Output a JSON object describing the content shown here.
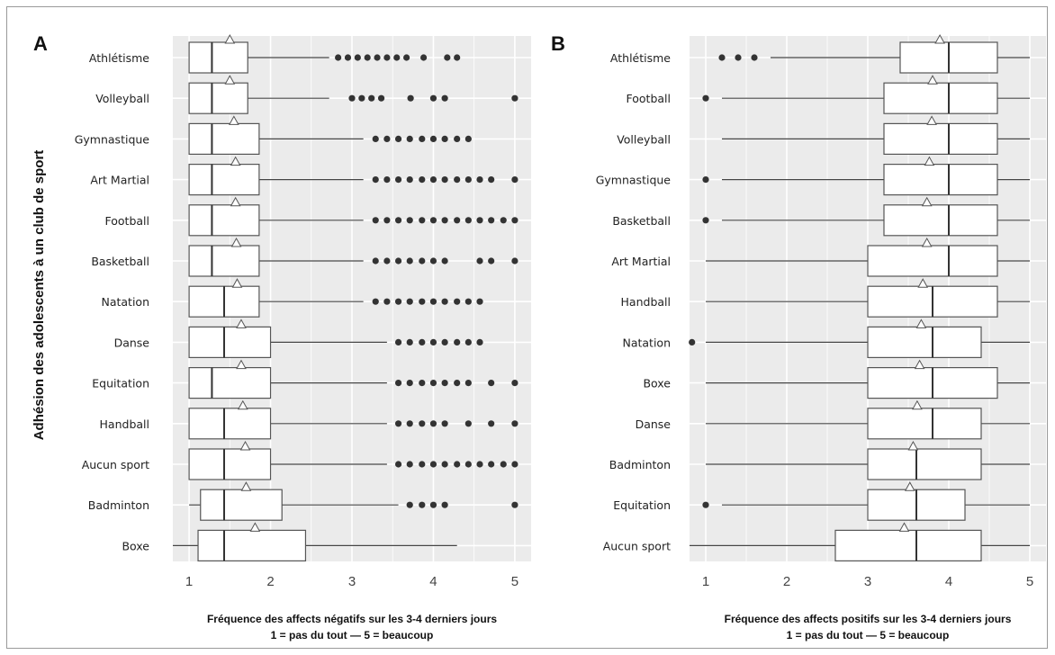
{
  "shared_ylabel": "Adhésion des adolescents à un club de sport",
  "chart_data": [
    {
      "type": "boxplot",
      "panel_label": "A",
      "xlabel": "Fréquence des affects négatifs sur les 3-4 derniers jours",
      "xlabel2": "1 = pas du tout — 5 = beaucoup",
      "xlim": [
        0.8,
        5.2
      ],
      "xticks": [
        1,
        2,
        3,
        4,
        5
      ],
      "grid": true,
      "categories": [
        "Athlétisme",
        "Volleyball",
        "Gymnastique",
        "Art Martial",
        "Football",
        "Basketball",
        "Natation",
        "Danse",
        "Equitation",
        "Handball",
        "Aucun sport",
        "Badminton",
        "Boxe"
      ],
      "boxes": [
        {
          "q1": 1.0,
          "median": 1.28,
          "q3": 1.72,
          "whisker_low": 1.0,
          "whisker_high": 2.72,
          "mean": 1.5,
          "outliers": [
            2.83,
            2.95,
            3.07,
            3.19,
            3.31,
            3.43,
            3.55,
            3.67,
            3.88,
            4.17,
            4.29
          ]
        },
        {
          "q1": 1.0,
          "median": 1.28,
          "q3": 1.72,
          "whisker_low": 1.0,
          "whisker_high": 2.72,
          "mean": 1.5,
          "outliers": [
            3.0,
            3.12,
            3.24,
            3.36,
            3.72,
            4.0,
            4.14,
            5.0
          ]
        },
        {
          "q1": 1.0,
          "median": 1.28,
          "q3": 1.86,
          "whisker_low": 1.0,
          "whisker_high": 3.14,
          "mean": 1.55,
          "outliers": [
            3.29,
            3.43,
            3.57,
            3.71,
            3.86,
            4.0,
            4.14,
            4.29,
            4.43
          ]
        },
        {
          "q1": 1.0,
          "median": 1.28,
          "q3": 1.86,
          "whisker_low": 1.0,
          "whisker_high": 3.14,
          "mean": 1.57,
          "outliers": [
            3.29,
            3.43,
            3.57,
            3.71,
            3.86,
            4.0,
            4.14,
            4.29,
            4.43,
            4.57,
            4.71,
            5.0
          ]
        },
        {
          "q1": 1.0,
          "median": 1.28,
          "q3": 1.86,
          "whisker_low": 1.0,
          "whisker_high": 3.14,
          "mean": 1.57,
          "outliers": [
            3.29,
            3.43,
            3.57,
            3.71,
            3.86,
            4.0,
            4.14,
            4.29,
            4.43,
            4.57,
            4.71,
            4.86,
            5.0
          ]
        },
        {
          "q1": 1.0,
          "median": 1.28,
          "q3": 1.86,
          "whisker_low": 1.0,
          "whisker_high": 3.14,
          "mean": 1.58,
          "outliers": [
            3.29,
            3.43,
            3.57,
            3.71,
            3.86,
            4.0,
            4.14,
            4.57,
            4.71,
            5.0
          ]
        },
        {
          "q1": 1.0,
          "median": 1.43,
          "q3": 1.86,
          "whisker_low": 1.0,
          "whisker_high": 3.14,
          "mean": 1.59,
          "outliers": [
            3.29,
            3.43,
            3.57,
            3.71,
            3.86,
            4.0,
            4.14,
            4.29,
            4.43,
            4.57
          ]
        },
        {
          "q1": 1.0,
          "median": 1.43,
          "q3": 2.0,
          "whisker_low": 1.0,
          "whisker_high": 3.43,
          "mean": 1.64,
          "outliers": [
            3.57,
            3.71,
            3.86,
            4.0,
            4.14,
            4.29,
            4.43,
            4.57
          ]
        },
        {
          "q1": 1.0,
          "median": 1.28,
          "q3": 2.0,
          "whisker_low": 1.0,
          "whisker_high": 3.43,
          "mean": 1.64,
          "outliers": [
            3.57,
            3.71,
            3.86,
            4.0,
            4.14,
            4.29,
            4.43,
            4.71,
            5.0
          ]
        },
        {
          "q1": 1.0,
          "median": 1.43,
          "q3": 2.0,
          "whisker_low": 1.0,
          "whisker_high": 3.43,
          "mean": 1.66,
          "outliers": [
            3.57,
            3.71,
            3.86,
            4.0,
            4.14,
            4.43,
            4.71,
            5.0
          ]
        },
        {
          "q1": 1.0,
          "median": 1.43,
          "q3": 2.0,
          "whisker_low": 1.0,
          "whisker_high": 3.43,
          "mean": 1.69,
          "outliers": [
            3.57,
            3.71,
            3.86,
            4.0,
            4.14,
            4.29,
            4.43,
            4.57,
            4.71,
            4.86,
            5.0
          ]
        },
        {
          "q1": 1.14,
          "median": 1.43,
          "q3": 2.14,
          "whisker_low": 1.0,
          "whisker_high": 3.57,
          "mean": 1.7,
          "outliers": [
            3.71,
            3.86,
            4.0,
            4.14,
            5.0
          ]
        },
        {
          "q1": 1.11,
          "median": 1.43,
          "q3": 2.43,
          "whisker_low": 0.8,
          "whisker_high": 4.29,
          "mean": 1.81,
          "outliers": []
        }
      ]
    },
    {
      "type": "boxplot",
      "panel_label": "B",
      "xlabel": "Fréquence des affects positifs sur les 3-4 derniers jours",
      "xlabel2": "1 = pas du tout — 5 = beaucoup",
      "xlim": [
        0.8,
        5.2
      ],
      "xticks": [
        1,
        2,
        3,
        4,
        5
      ],
      "grid": true,
      "categories": [
        "Athlétisme",
        "Football",
        "Volleyball",
        "Gymnastique",
        "Basketball",
        "Art Martial",
        "Handball",
        "Natation",
        "Boxe",
        "Danse",
        "Badminton",
        "Equitation",
        "Aucun sport"
      ],
      "boxes": [
        {
          "q1": 3.4,
          "median": 4.0,
          "q3": 4.6,
          "whisker_low": 1.8,
          "whisker_high": 5.0,
          "mean": 3.89,
          "outliers": [
            1.2,
            1.4,
            1.6
          ]
        },
        {
          "q1": 3.2,
          "median": 4.0,
          "q3": 4.6,
          "whisker_low": 1.2,
          "whisker_high": 5.0,
          "mean": 3.8,
          "outliers": [
            1.0
          ]
        },
        {
          "q1": 3.2,
          "median": 4.0,
          "q3": 4.6,
          "whisker_low": 1.2,
          "whisker_high": 5.0,
          "mean": 3.79,
          "outliers": []
        },
        {
          "q1": 3.2,
          "median": 4.0,
          "q3": 4.6,
          "whisker_low": 1.2,
          "whisker_high": 5.0,
          "mean": 3.76,
          "outliers": [
            1.0
          ]
        },
        {
          "q1": 3.2,
          "median": 4.0,
          "q3": 4.6,
          "whisker_low": 1.2,
          "whisker_high": 5.0,
          "mean": 3.73,
          "outliers": [
            1.0
          ]
        },
        {
          "q1": 3.0,
          "median": 4.0,
          "q3": 4.6,
          "whisker_low": 1.0,
          "whisker_high": 5.0,
          "mean": 3.73,
          "outliers": []
        },
        {
          "q1": 3.0,
          "median": 3.8,
          "q3": 4.6,
          "whisker_low": 1.0,
          "whisker_high": 5.0,
          "mean": 3.68,
          "outliers": []
        },
        {
          "q1": 3.0,
          "median": 3.8,
          "q3": 4.4,
          "whisker_low": 1.0,
          "whisker_high": 5.0,
          "mean": 3.66,
          "outliers": [
            0.83
          ]
        },
        {
          "q1": 3.0,
          "median": 3.8,
          "q3": 4.6,
          "whisker_low": 1.0,
          "whisker_high": 5.0,
          "mean": 3.64,
          "outliers": []
        },
        {
          "q1": 3.0,
          "median": 3.8,
          "q3": 4.4,
          "whisker_low": 1.0,
          "whisker_high": 5.0,
          "mean": 3.61,
          "outliers": []
        },
        {
          "q1": 3.0,
          "median": 3.6,
          "q3": 4.4,
          "whisker_low": 1.0,
          "whisker_high": 5.0,
          "mean": 3.56,
          "outliers": []
        },
        {
          "q1": 3.0,
          "median": 3.6,
          "q3": 4.2,
          "whisker_low": 1.2,
          "whisker_high": 5.0,
          "mean": 3.52,
          "outliers": [
            1.0
          ]
        },
        {
          "q1": 2.6,
          "median": 3.6,
          "q3": 4.4,
          "whisker_low": 0.8,
          "whisker_high": 5.0,
          "mean": 3.45,
          "outliers": []
        }
      ]
    }
  ]
}
